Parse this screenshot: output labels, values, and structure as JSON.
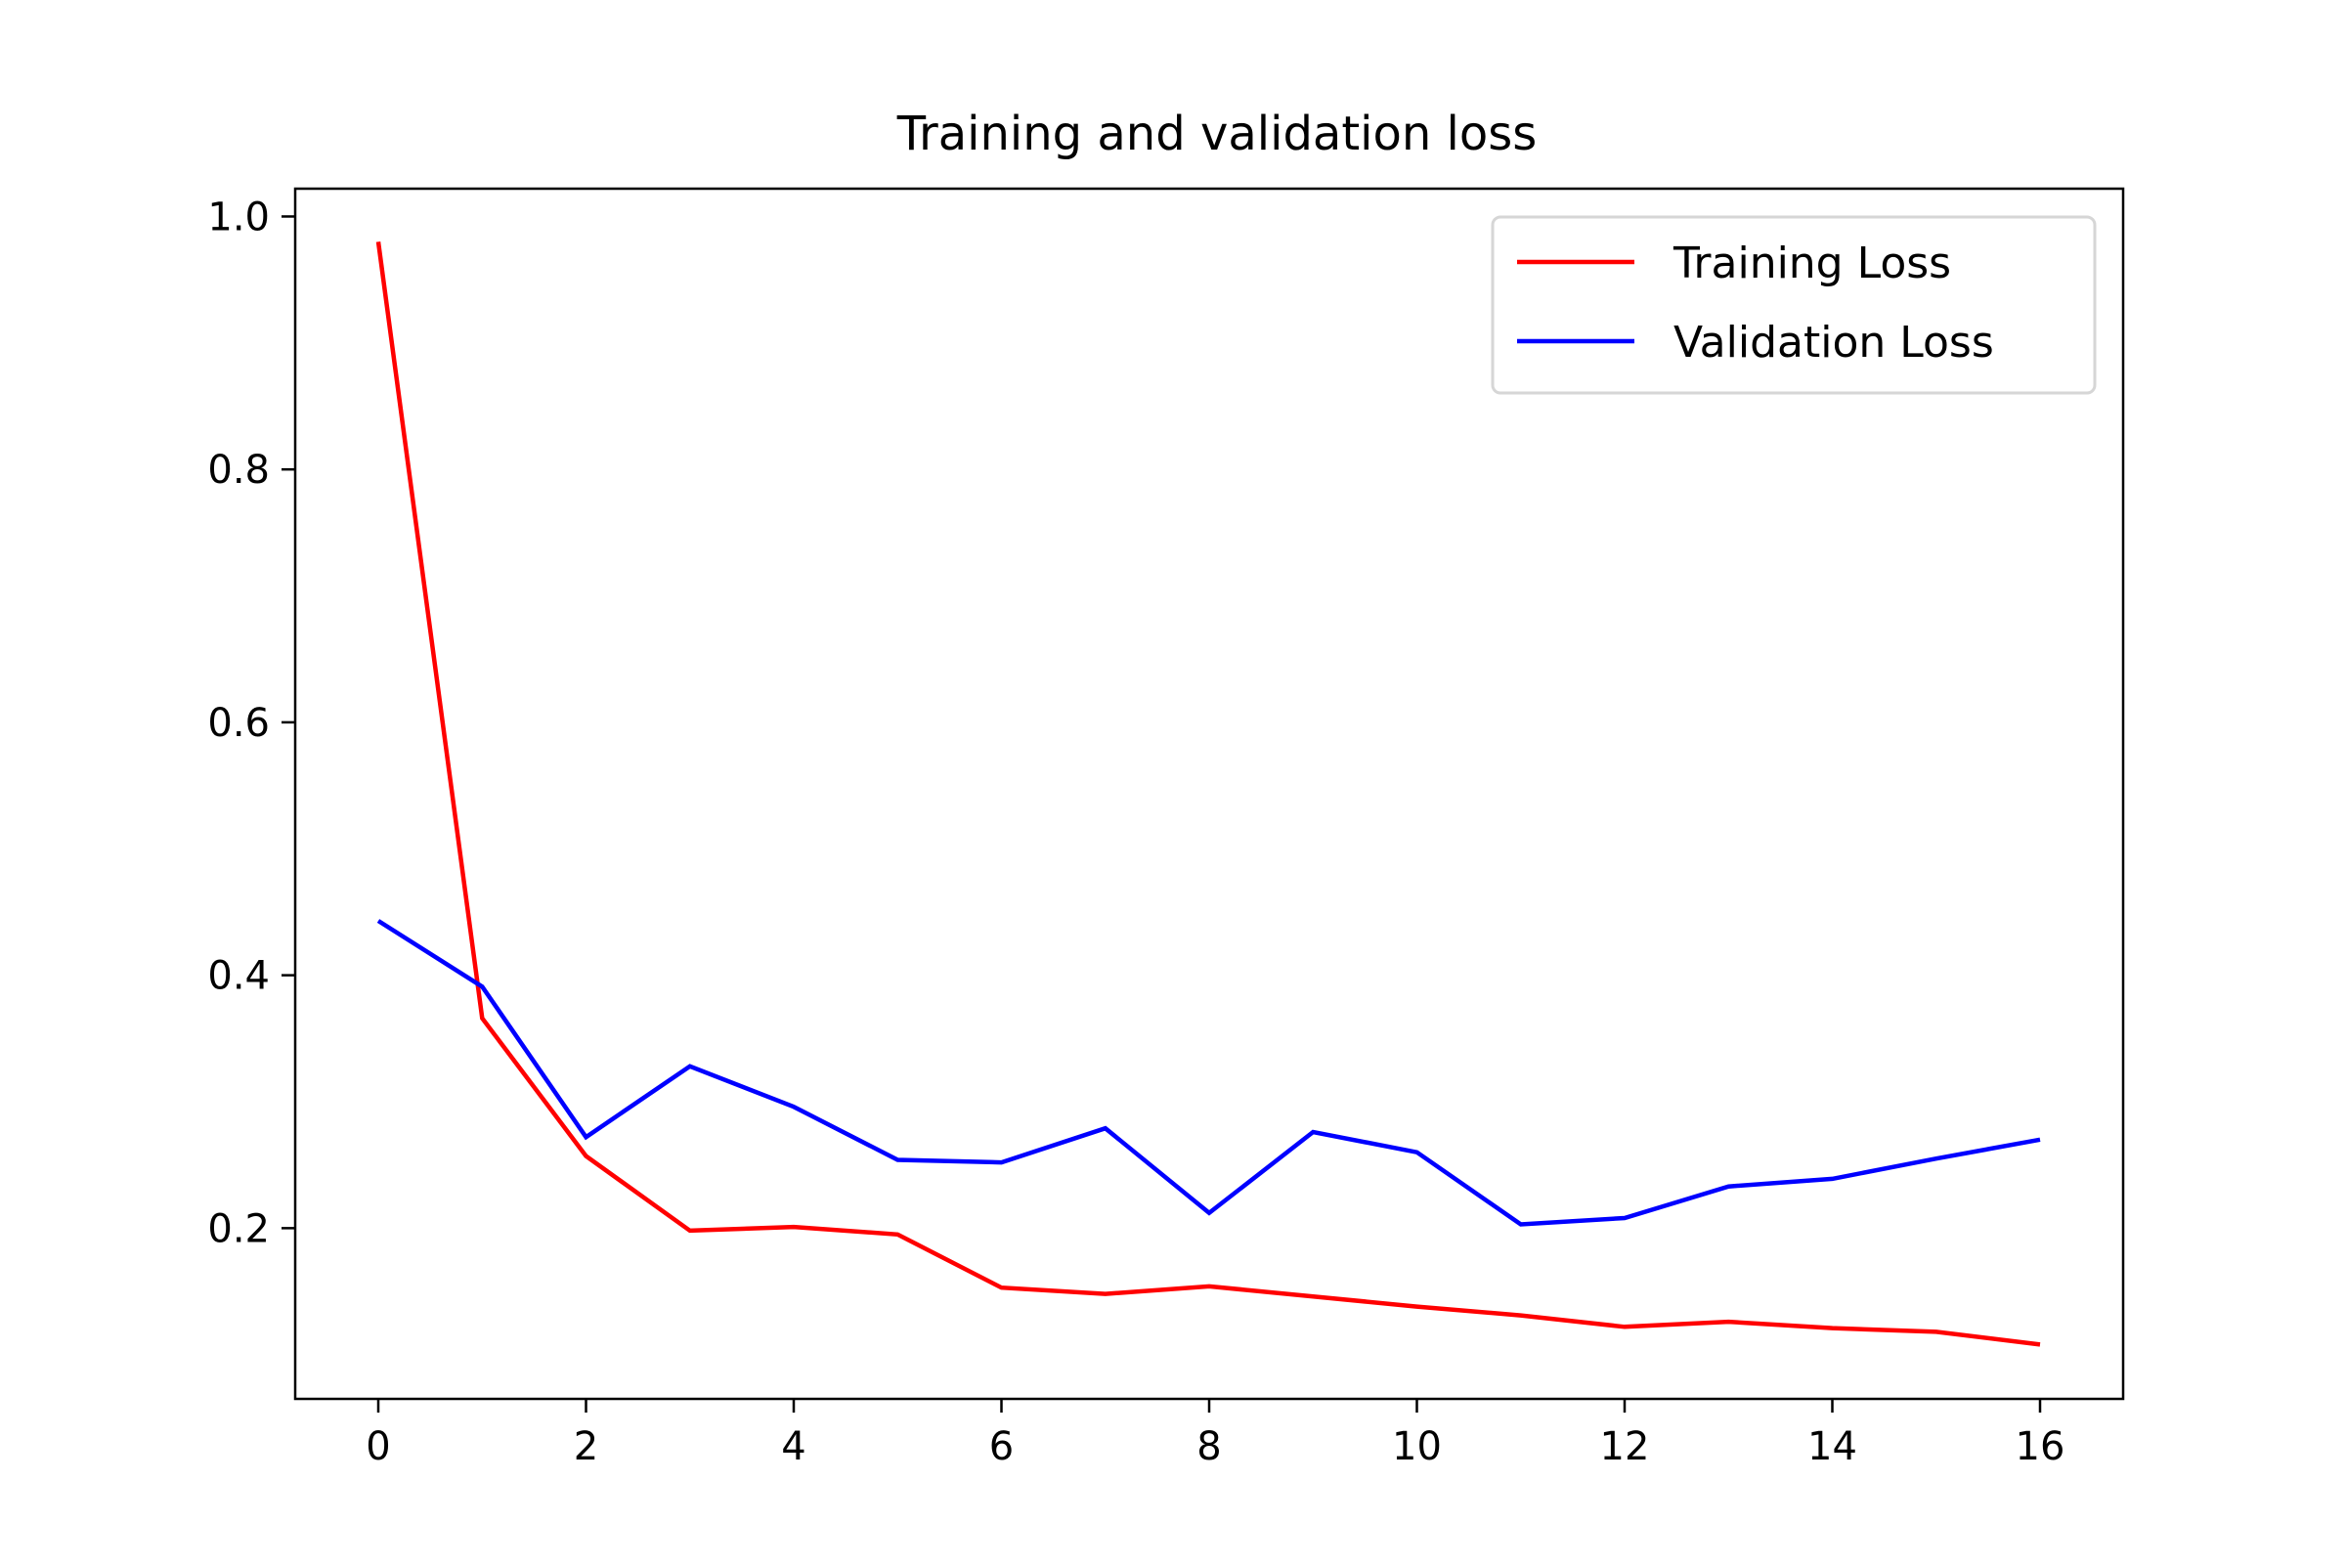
{
  "chart_data": {
    "type": "line",
    "title": "Training and validation loss",
    "xlabel": "",
    "ylabel": "",
    "x": [
      0,
      1,
      2,
      3,
      4,
      5,
      6,
      7,
      8,
      9,
      10,
      11,
      12,
      13,
      14,
      15,
      16
    ],
    "series": [
      {
        "name": "Training Loss",
        "color": "#ff0000",
        "values": [
          0.98,
          0.366,
          0.257,
          0.198,
          0.201,
          0.195,
          0.153,
          0.148,
          0.154,
          0.146,
          0.138,
          0.131,
          0.122,
          0.126,
          0.121,
          0.118,
          0.108
        ]
      },
      {
        "name": "Validation Loss",
        "color": "#0000ff",
        "values": [
          0.443,
          0.391,
          0.272,
          0.328,
          0.296,
          0.254,
          0.252,
          0.279,
          0.212,
          0.276,
          0.26,
          0.203,
          0.208,
          0.233,
          0.239,
          0.255,
          0.27
        ]
      }
    ],
    "xlim": [
      -0.8,
      16.8
    ],
    "ylim": [
      0.065,
      1.022
    ],
    "xticks": [
      "0",
      "2",
      "4",
      "6",
      "8",
      "10",
      "12",
      "14",
      "16"
    ],
    "yticks": [
      "0.2",
      "0.4",
      "0.6",
      "0.8",
      "1.0"
    ],
    "grid": false,
    "legend_position": "top-right"
  }
}
